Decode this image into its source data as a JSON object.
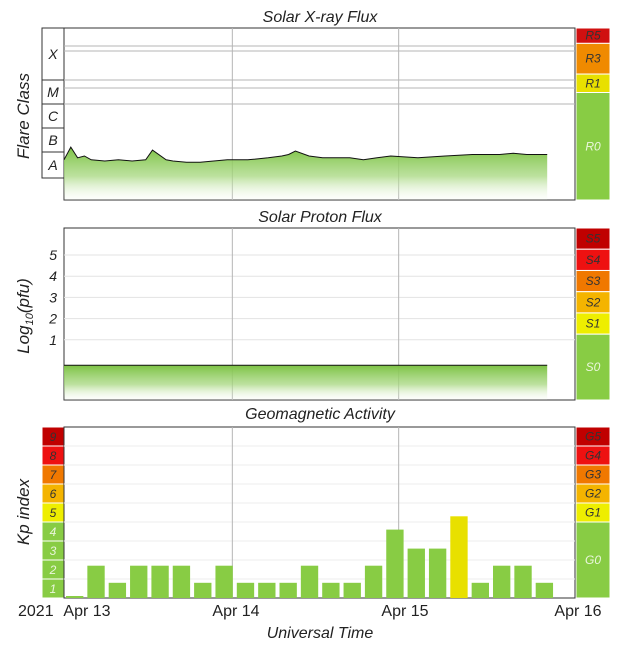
{
  "charts": {
    "xray": {
      "title": "Solar X-ray Flux",
      "ylabel": "Flare Class",
      "classes": [
        "A",
        "B",
        "C",
        "M",
        "X"
      ],
      "scale": [
        {
          "label": "R5",
          "color": "#d01010"
        },
        {
          "label": "R3",
          "color": "#f08a00"
        },
        {
          "label": "R1",
          "color": "#e8e000"
        },
        {
          "label": "R0",
          "color": "#88cc44"
        }
      ]
    },
    "proton": {
      "title": "Solar Proton Flux",
      "ylabel_main": "Log",
      "ylabel_sub": "10",
      "ylabel_tail": "(pfu)",
      "ticks": [
        "1",
        "2",
        "3",
        "4",
        "5"
      ],
      "scale": [
        {
          "label": "S5",
          "color": "#c00000"
        },
        {
          "label": "S4",
          "color": "#ee1111"
        },
        {
          "label": "S3",
          "color": "#f07800"
        },
        {
          "label": "S2",
          "color": "#f4b400"
        },
        {
          "label": "S1",
          "color": "#eeee00"
        },
        {
          "label": "S0",
          "color": "#88cc44"
        }
      ]
    },
    "geomag": {
      "title": "Geomagnetic Activity",
      "ylabel": "Kp index",
      "left_scale": [
        {
          "label": "1",
          "color": "#88cc44"
        },
        {
          "label": "2",
          "color": "#88cc44"
        },
        {
          "label": "3",
          "color": "#88cc44"
        },
        {
          "label": "4",
          "color": "#88cc44"
        },
        {
          "label": "5",
          "color": "#eeee00"
        },
        {
          "label": "6",
          "color": "#f4b400"
        },
        {
          "label": "7",
          "color": "#f07800"
        },
        {
          "label": "8",
          "color": "#ee1111"
        },
        {
          "label": "9",
          "color": "#c00000"
        }
      ],
      "scale": [
        {
          "label": "G5",
          "color": "#c00000"
        },
        {
          "label": "G4",
          "color": "#ee1111"
        },
        {
          "label": "G3",
          "color": "#f07800"
        },
        {
          "label": "G2",
          "color": "#f4b400"
        },
        {
          "label": "G1",
          "color": "#eeee00"
        },
        {
          "label": "G0",
          "color": "#88cc44"
        }
      ]
    }
  },
  "xaxis": {
    "year": "2021",
    "ticks": [
      "Apr 13",
      "Apr 14",
      "Apr 15",
      "Apr 16"
    ],
    "label": "Universal Time"
  },
  "chart_data": [
    {
      "type": "area",
      "title": "Solar X-ray Flux",
      "ylabel": "Flare Class",
      "x_range": [
        "2021-04-13 00:00",
        "2021-04-16 00:00"
      ],
      "y_scale": "log",
      "y_categories": [
        "A",
        "B",
        "C",
        "M",
        "X"
      ],
      "series": [
        {
          "x": [
            "04-13 00:00",
            "04-13 01:00",
            "04-13 02:00",
            "04-13 03:00",
            "04-13 04:00",
            "04-13 06:00",
            "04-13 08:00",
            "04-13 10:00",
            "04-13 12:00",
            "04-13 13:00",
            "04-13 15:00",
            "04-13 16:00",
            "04-13 18:00",
            "04-13 20:00",
            "04-13 22:00",
            "04-14 00:00",
            "04-14 03:00",
            "04-14 06:00",
            "04-14 08:00",
            "04-14 09:00",
            "04-14 10:00",
            "04-14 12:00",
            "04-14 14:00",
            "04-14 16:00",
            "04-14 18:00",
            "04-14 20:00",
            "04-14 22:00",
            "04-15 00:00",
            "04-15 04:00",
            "04-15 08:00",
            "04-15 12:00",
            "04-15 16:00",
            "04-15 18:00",
            "04-15 20:00",
            "04-15 22:00",
            "04-15 23:00"
          ],
          "y": [
            "A5",
            "B1.6",
            "A6",
            "A7",
            "A5",
            "A4.5",
            "A5",
            "A4.5",
            "A5",
            "B1.2",
            "A5",
            "A4.5",
            "A4",
            "A4",
            "A4.5",
            "A5",
            "A5",
            "A6",
            "A7",
            "A8",
            "B1.1",
            "A7",
            "A6",
            "A6",
            "A6",
            "A5",
            "A6",
            "A7",
            "A6",
            "A7",
            "A8",
            "A8",
            "A9",
            "A8",
            "A8",
            "A8"
          ]
        }
      ]
    },
    {
      "type": "area",
      "title": "Solar Proton Flux",
      "ylabel": "Log10(pfu)",
      "x_range": [
        "2021-04-13 00:00",
        "2021-04-16 00:00"
      ],
      "y_ticks": [
        1,
        2,
        3,
        4,
        5
      ],
      "series": [
        {
          "x": [
            "04-13 00:00",
            "04-14 00:00",
            "04-15 00:00",
            "04-15 23:00"
          ],
          "y": [
            -0.2,
            -0.2,
            -0.2,
            -0.2
          ]
        }
      ]
    },
    {
      "type": "bar",
      "title": "Geomagnetic Activity",
      "ylabel": "Kp index",
      "xlabel": "Universal Time",
      "ylim": [
        0,
        9
      ],
      "interval_hours": 3,
      "categories": [
        "04-13 00",
        "04-13 03",
        "04-13 06",
        "04-13 09",
        "04-13 12",
        "04-13 15",
        "04-13 18",
        "04-13 21",
        "04-14 00",
        "04-14 03",
        "04-14 06",
        "04-14 09",
        "04-14 12",
        "04-14 15",
        "04-14 18",
        "04-14 21",
        "04-15 00",
        "04-15 03",
        "04-15 06",
        "04-15 09",
        "04-15 12",
        "04-15 15",
        "04-15 18",
        "04-15 21"
      ],
      "values": [
        0.1,
        1.7,
        0.8,
        1.7,
        1.7,
        1.7,
        0.8,
        1.7,
        0.8,
        0.8,
        0.8,
        1.7,
        0.8,
        0.8,
        1.7,
        3.6,
        2.6,
        2.6,
        4.3,
        0.8,
        1.7,
        1.7,
        0.8,
        0.0
      ],
      "colors": [
        "#88cc44",
        "#88cc44",
        "#88cc44",
        "#88cc44",
        "#88cc44",
        "#88cc44",
        "#88cc44",
        "#88cc44",
        "#88cc44",
        "#88cc44",
        "#88cc44",
        "#88cc44",
        "#88cc44",
        "#88cc44",
        "#88cc44",
        "#88cc44",
        "#88cc44",
        "#88cc44",
        "#e8e000",
        "#88cc44",
        "#88cc44",
        "#88cc44",
        "#88cc44",
        "#88cc44"
      ]
    }
  ]
}
